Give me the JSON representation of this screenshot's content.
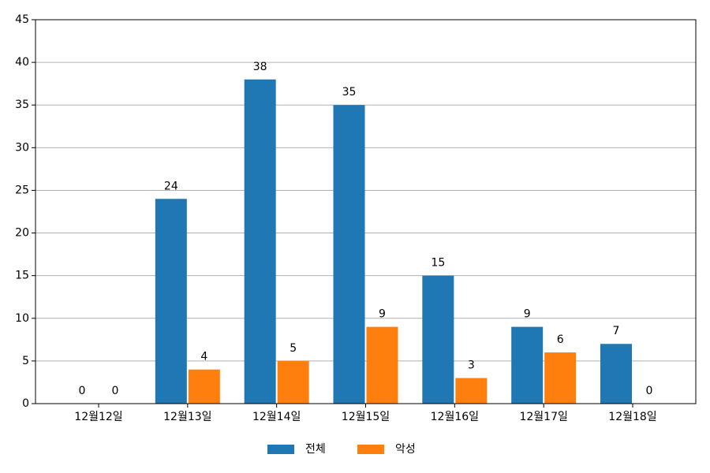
{
  "chart_data": {
    "type": "bar",
    "categories": [
      "12월12일",
      "12월13일",
      "12월14일",
      "12월15일",
      "12월16일",
      "12월17일",
      "12월18일"
    ],
    "series": [
      {
        "name": "전체",
        "color": "#1f77b4",
        "values": [
          0,
          24,
          38,
          35,
          15,
          9,
          7
        ]
      },
      {
        "name": "악성",
        "color": "#ff7f0e",
        "values": [
          0,
          4,
          5,
          9,
          3,
          6,
          0
        ]
      }
    ],
    "ylim": [
      0,
      45
    ],
    "yticks": [
      0,
      5,
      10,
      15,
      20,
      25,
      30,
      35,
      40,
      45
    ],
    "grid": true,
    "legend": "bottom"
  }
}
